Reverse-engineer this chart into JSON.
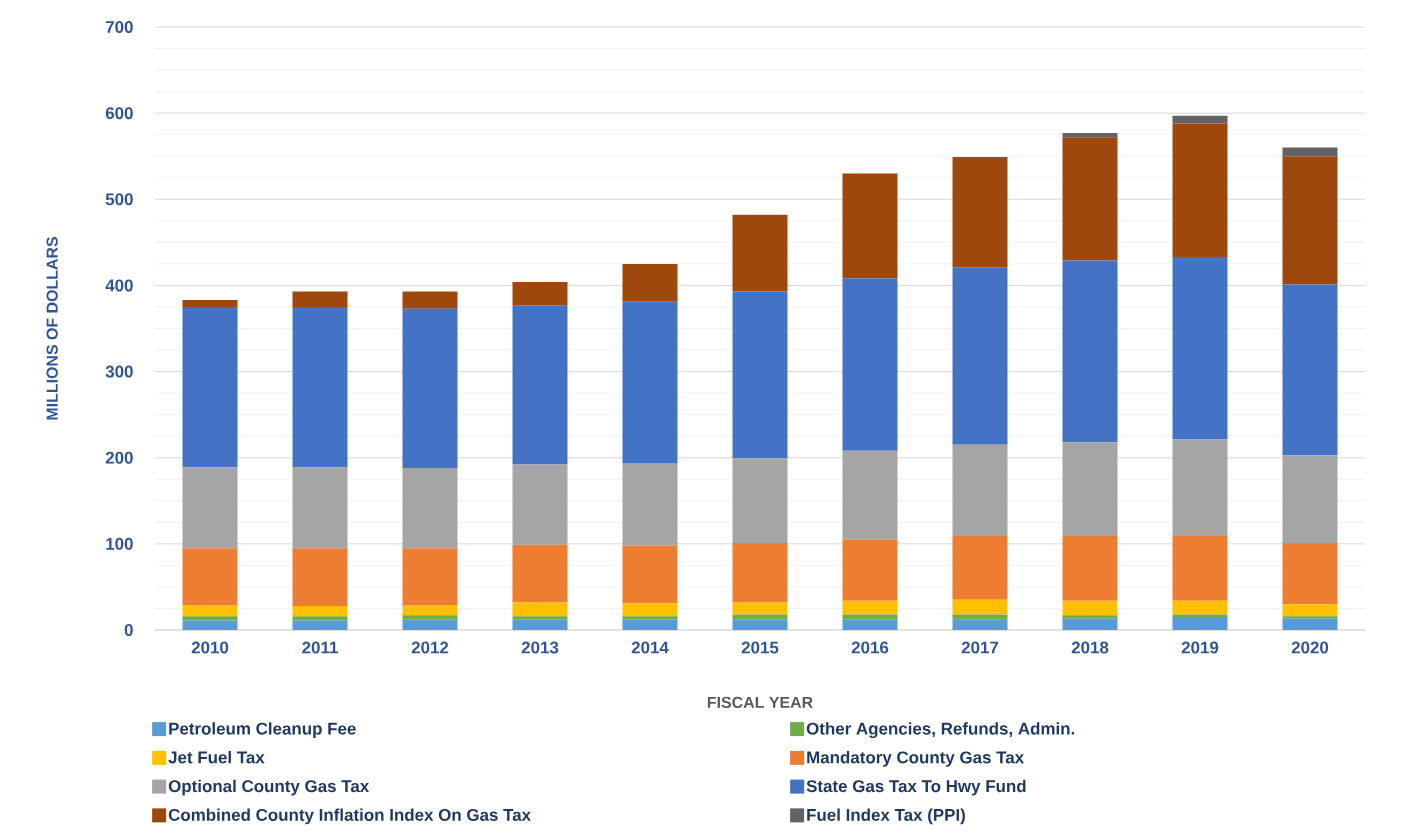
{
  "chart_data": {
    "type": "bar",
    "stacked": true,
    "xlabel": "FISCAL YEAR",
    "ylabel": "MILLIONS OF DOLLARS",
    "categories": [
      "2010",
      "2011",
      "2012",
      "2013",
      "2014",
      "2015",
      "2016",
      "2017",
      "2018",
      "2019",
      "2020"
    ],
    "ylim": [
      0,
      700
    ],
    "yticks": [
      0,
      100,
      200,
      300,
      400,
      500,
      600,
      700
    ],
    "grid": "y",
    "legend": "bottom",
    "series": [
      {
        "name": "Petroleum Cleanup Fee",
        "color": "#5b9bd5",
        "values": [
          11,
          11,
          12,
          12,
          12,
          12,
          12,
          12,
          13,
          14,
          13
        ]
      },
      {
        "name": "Other Agencies, Refunds, Admin.",
        "color": "#70ad47",
        "values": [
          5,
          5,
          5,
          4,
          4,
          6,
          6,
          6,
          4,
          4,
          3
        ]
      },
      {
        "name": "Jet Fuel Tax",
        "color": "#ffc000",
        "values": [
          13,
          12,
          12,
          16,
          15,
          14,
          16,
          17,
          17,
          16,
          14
        ]
      },
      {
        "name": "Mandatory County Gas Tax",
        "color": "#ed7d31",
        "values": [
          66,
          67,
          66,
          67,
          67,
          69,
          71,
          74,
          75,
          76,
          71
        ]
      },
      {
        "name": "Optional County Gas Tax",
        "color": "#a5a5a5",
        "values": [
          94,
          94,
          93,
          93,
          96,
          98,
          103,
          106,
          109,
          111,
          102
        ]
      },
      {
        "name": "State Gas Tax To Hwy Fund",
        "color": "#4472c4",
        "values": [
          186,
          186,
          185,
          185,
          187,
          194,
          200,
          206,
          211,
          212,
          198
        ]
      },
      {
        "name": "Combined County Inflation Index On Gas Tax",
        "color": "#9e480e",
        "values": [
          8,
          18,
          20,
          27,
          44,
          89,
          122,
          128,
          143,
          155,
          149
        ]
      },
      {
        "name": "Fuel Index Tax (PPI)",
        "color": "#636363",
        "values": [
          null,
          null,
          null,
          null,
          null,
          null,
          null,
          null,
          5,
          9,
          10
        ]
      }
    ]
  }
}
